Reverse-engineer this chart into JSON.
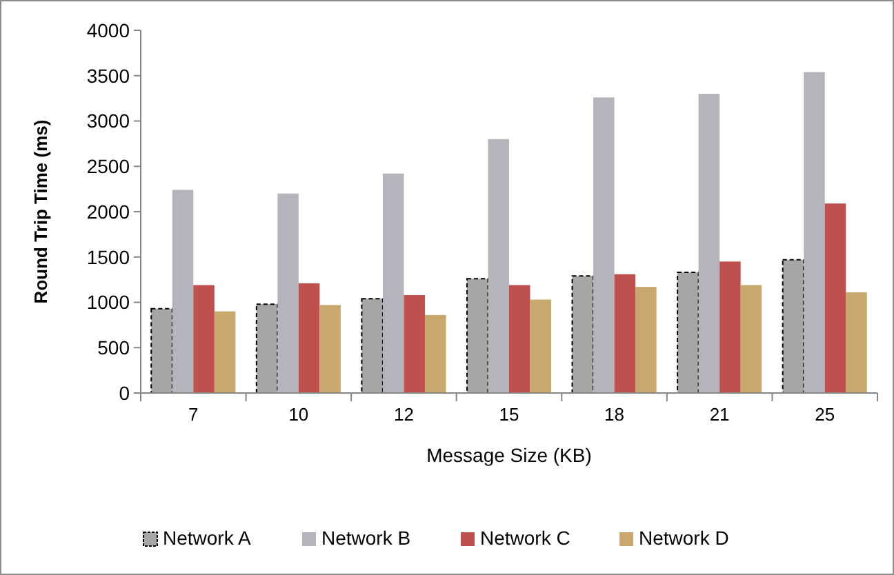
{
  "chart_data": {
    "type": "bar",
    "xlabel": "Message Size (KB)",
    "ylabel": "Round Trip Time (ms)",
    "categories": [
      "7",
      "10",
      "12",
      "15",
      "18",
      "21",
      "25"
    ],
    "series": [
      {
        "name": "Network A",
        "color": "#a6a6a6",
        "values": [
          930,
          980,
          1040,
          1260,
          1290,
          1330,
          1470
        ]
      },
      {
        "name": "Network B",
        "color": "#b4b4bc",
        "values": [
          2240,
          2200,
          2420,
          2800,
          3260,
          3300,
          3540
        ]
      },
      {
        "name": "Network C",
        "color": "#c0504d",
        "values": [
          1190,
          1210,
          1080,
          1190,
          1310,
          1450,
          2090
        ]
      },
      {
        "name": "Network D",
        "color": "#c9a86e",
        "values": [
          900,
          970,
          860,
          1030,
          1170,
          1190,
          1110
        ]
      }
    ],
    "ylim": [
      0,
      4000
    ],
    "yticks": [
      0,
      500,
      1000,
      1500,
      2000,
      2500,
      3000,
      3500,
      4000
    ],
    "grid": false,
    "legend": "bottom"
  }
}
